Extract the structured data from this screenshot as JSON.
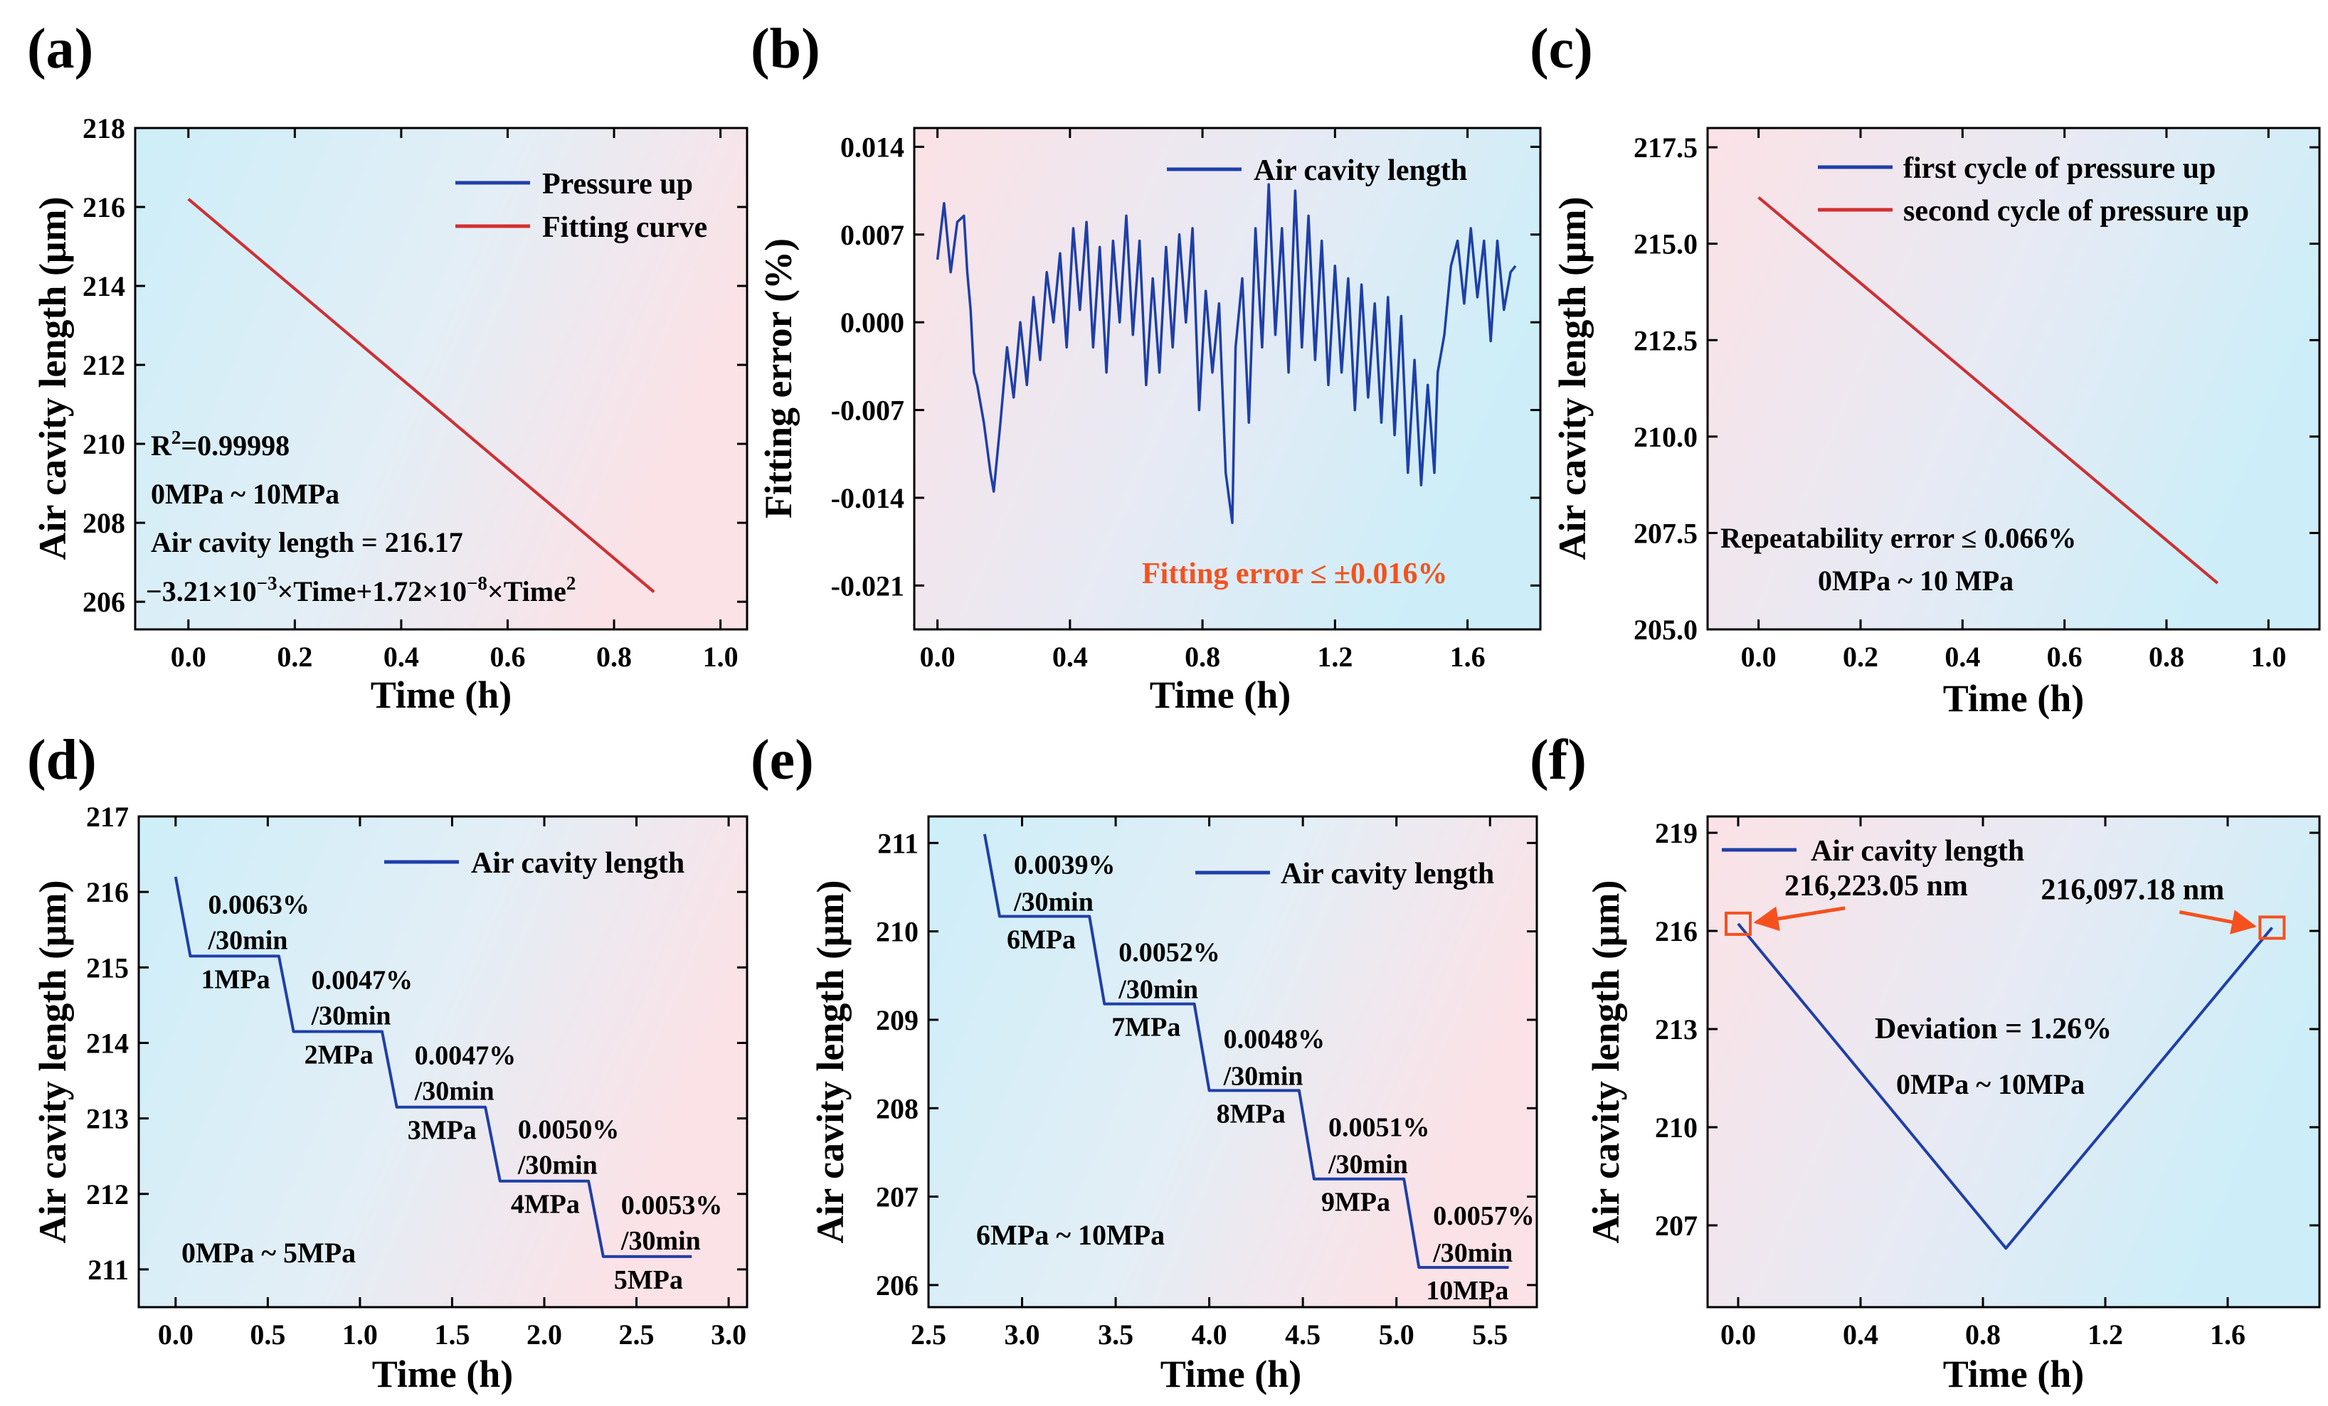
{
  "figure": {
    "panels_order": [
      "a",
      "b",
      "c",
      "d",
      "e",
      "f"
    ]
  },
  "colors": {
    "blue": "#1f3fa8",
    "red": "#d32f2f",
    "orange_annot": "#f4511e",
    "arrow": "#f4511e",
    "bg_cyan": "#d6f1f8",
    "bg_pink": "#fbe3e6"
  },
  "chart_data": [
    {
      "id": "a",
      "label": "(a)",
      "type": "line",
      "xlabel": "Time (h)",
      "ylabel": "Air cavity length (μm)",
      "xlim": [
        -0.1,
        1.05
      ],
      "ylim": [
        205.3,
        218
      ],
      "xticks": [
        0.0,
        0.2,
        0.4,
        0.6,
        0.8,
        1.0
      ],
      "xtick_labels": [
        "0.0",
        "0.2",
        "0.4",
        "0.6",
        "0.8",
        "1.0"
      ],
      "yticks": [
        206,
        208,
        210,
        212,
        214,
        216,
        218
      ],
      "ytick_labels": [
        "206",
        "208",
        "210",
        "212",
        "214",
        "216",
        "218"
      ],
      "gradient": "cyan-left",
      "series": [
        {
          "name": "Pressure up",
          "color": "#1f3fa8",
          "x": [
            0.0,
            0.875
          ],
          "y": [
            216.2,
            206.25
          ]
        },
        {
          "name": "Fitting curve",
          "color": "#d32f2f",
          "x": [
            0.0,
            0.875
          ],
          "y": [
            216.2,
            206.25
          ]
        }
      ],
      "legend_position": "top-right",
      "annotations": [
        {
          "text": "R",
          "sup": "2",
          "after": "=0.99998"
        },
        {
          "text": "0MPa ~ 10MPa"
        },
        {
          "text": "Air cavity length = 216.17"
        },
        {
          "text": "−3.21×10",
          "sup": "−3",
          "after": "×Time+1.72×10",
          "sup2": "−8",
          "after2": "×Time",
          "sup3": "2"
        }
      ]
    },
    {
      "id": "b",
      "label": "(b)",
      "type": "line",
      "xlabel": "Time (h)",
      "ylabel": "Fitting error (%)",
      "xlim": [
        -0.07,
        1.82
      ],
      "ylim": [
        -0.0245,
        0.0155
      ],
      "xticks": [
        0.0,
        0.4,
        0.8,
        1.2,
        1.6
      ],
      "xtick_labels": [
        "0.0",
        "0.4",
        "0.8",
        "1.2",
        "1.6"
      ],
      "yticks": [
        -0.021,
        -0.014,
        -0.007,
        0.0,
        0.007,
        0.014
      ],
      "ytick_labels": [
        "-0.021",
        "-0.014",
        "-0.007",
        "0.000",
        "0.007",
        "0.014"
      ],
      "gradient": "pink-left",
      "series": [
        {
          "name": "Air cavity length",
          "color": "#1f3fa8",
          "x": [
            0.0,
            0.02,
            0.04,
            0.06,
            0.08,
            0.09,
            0.1,
            0.11,
            0.12,
            0.14,
            0.16,
            0.17,
            0.19,
            0.21,
            0.23,
            0.25,
            0.27,
            0.29,
            0.31,
            0.33,
            0.35,
            0.37,
            0.39,
            0.41,
            0.43,
            0.45,
            0.47,
            0.49,
            0.51,
            0.53,
            0.55,
            0.57,
            0.59,
            0.61,
            0.63,
            0.65,
            0.67,
            0.69,
            0.71,
            0.73,
            0.75,
            0.77,
            0.79,
            0.81,
            0.83,
            0.85,
            0.87,
            0.89,
            0.9,
            0.92,
            0.94,
            0.96,
            0.98,
            1.0,
            1.02,
            1.04,
            1.06,
            1.08,
            1.1,
            1.12,
            1.14,
            1.16,
            1.18,
            1.2,
            1.22,
            1.24,
            1.26,
            1.28,
            1.3,
            1.32,
            1.34,
            1.36,
            1.38,
            1.4,
            1.42,
            1.44,
            1.46,
            1.48,
            1.5,
            1.51,
            1.53,
            1.55,
            1.57,
            1.59,
            1.61,
            1.63,
            1.65,
            1.67,
            1.69,
            1.71,
            1.73,
            1.745
          ],
          "y": [
            0.005,
            0.0095,
            0.004,
            0.008,
            0.0085,
            0.004,
            0.001,
            -0.004,
            -0.005,
            -0.008,
            -0.012,
            -0.0135,
            -0.008,
            -0.002,
            -0.006,
            0.0,
            -0.005,
            0.002,
            -0.003,
            0.004,
            0.0,
            0.0055,
            -0.002,
            0.0075,
            0.001,
            0.008,
            -0.002,
            0.006,
            -0.004,
            0.0065,
            0.0,
            0.0085,
            -0.001,
            0.0065,
            -0.005,
            0.0035,
            -0.004,
            0.006,
            -0.002,
            0.007,
            0.0,
            0.0075,
            -0.007,
            0.0025,
            -0.004,
            0.0015,
            -0.012,
            -0.016,
            -0.002,
            0.0035,
            -0.008,
            0.0075,
            -0.002,
            0.011,
            -0.001,
            0.0075,
            -0.004,
            0.0105,
            -0.002,
            0.0085,
            -0.003,
            0.0065,
            -0.005,
            0.0045,
            -0.004,
            0.0035,
            -0.007,
            0.003,
            -0.006,
            0.0015,
            -0.008,
            0.002,
            -0.009,
            0.0005,
            -0.012,
            -0.003,
            -0.013,
            -0.005,
            -0.012,
            -0.004,
            -0.001,
            0.0045,
            0.0065,
            0.0015,
            0.0075,
            0.002,
            0.0065,
            -0.0015,
            0.0065,
            0.001,
            0.004,
            0.0045
          ]
        }
      ],
      "legend_position": "top-right",
      "annotations": [
        {
          "text": "Fitting error ≤ ±0.016%",
          "color": "#f4511e"
        }
      ]
    },
    {
      "id": "c",
      "label": "(c)",
      "type": "line",
      "xlabel": "Time (h)",
      "ylabel": "Air cavity length (μm)",
      "xlim": [
        -0.1,
        1.1
      ],
      "ylim": [
        205.0,
        218.0
      ],
      "xticks": [
        0.0,
        0.2,
        0.4,
        0.6,
        0.8,
        1.0
      ],
      "xtick_labels": [
        "0.0",
        "0.2",
        "0.4",
        "0.6",
        "0.8",
        "1.0"
      ],
      "yticks": [
        205.0,
        207.5,
        210.0,
        212.5,
        215.0,
        217.5
      ],
      "ytick_labels": [
        "205.0",
        "207.5",
        "210.0",
        "212.5",
        "215.0",
        "217.5"
      ],
      "gradient": "pink-left",
      "series": [
        {
          "name": "first cycle of pressure up",
          "color": "#1f3fa8",
          "x": [
            0.0,
            0.9
          ],
          "y": [
            216.2,
            206.2
          ]
        },
        {
          "name": "second cycle of pressure up",
          "color": "#d32f2f",
          "x": [
            0.0,
            0.9
          ],
          "y": [
            216.2,
            206.2
          ]
        }
      ],
      "legend_position": "top-right",
      "annotations": [
        {
          "text": "Repeatability error ≤ 0.066%"
        },
        {
          "text": "0MPa ~ 10 MPa"
        }
      ]
    },
    {
      "id": "d",
      "label": "(d)",
      "type": "line",
      "xlabel": "Time (h)",
      "ylabel": "Air cavity length (μm)",
      "xlim": [
        -0.2,
        3.1
      ],
      "ylim": [
        210.5,
        217.0
      ],
      "xticks": [
        0.0,
        0.5,
        1.0,
        1.5,
        2.0,
        2.5,
        3.0
      ],
      "xtick_labels": [
        "0.0",
        "0.5",
        "1.0",
        "1.5",
        "2.0",
        "2.5",
        "3.0"
      ],
      "yticks": [
        211,
        212,
        213,
        214,
        215,
        216,
        217
      ],
      "ytick_labels": [
        "211",
        "212",
        "213",
        "214",
        "215",
        "216",
        "217"
      ],
      "gradient": "cyan-left",
      "series": [
        {
          "name": "Air cavity length",
          "color": "#1f3fa8",
          "x": [
            0.0,
            0.08,
            0.56,
            0.64,
            1.12,
            1.2,
            1.68,
            1.76,
            2.24,
            2.32,
            2.8
          ],
          "y": [
            216.2,
            215.15,
            215.15,
            214.15,
            214.15,
            213.15,
            213.15,
            212.17,
            212.17,
            211.17,
            211.17
          ]
        }
      ],
      "legend_position": "top-right",
      "step_labels": [
        {
          "rate": "0.0063%",
          "per": "/30min",
          "pressure": "1MPa"
        },
        {
          "rate": "0.0047%",
          "per": "/30min",
          "pressure": "2MPa"
        },
        {
          "rate": "0.0047%",
          "per": "/30min",
          "pressure": "3MPa"
        },
        {
          "rate": "0.0050%",
          "per": "/30min",
          "pressure": "4MPa"
        },
        {
          "rate": "0.0053%",
          "per": "/30min",
          "pressure": "5MPa"
        }
      ],
      "annotations": [
        {
          "text": "0MPa ~ 5MPa"
        }
      ]
    },
    {
      "id": "e",
      "label": "(e)",
      "type": "line",
      "xlabel": "Time (h)",
      "ylabel": "Air cavity length (μm)",
      "xlim": [
        2.5,
        5.75
      ],
      "ylim": [
        205.75,
        211.3
      ],
      "xticks": [
        2.5,
        3.0,
        3.5,
        4.0,
        4.5,
        5.0,
        5.5
      ],
      "xtick_labels": [
        "2.5",
        "3.0",
        "3.5",
        "4.0",
        "4.5",
        "5.0",
        "5.5"
      ],
      "yticks": [
        206,
        207,
        208,
        209,
        210,
        211
      ],
      "ytick_labels": [
        "206",
        "207",
        "208",
        "209",
        "210",
        "211"
      ],
      "gradient": "cyan-left",
      "series": [
        {
          "name": "Air cavity length",
          "color": "#1f3fa8",
          "x": [
            2.8,
            2.88,
            3.36,
            3.44,
            3.92,
            4.0,
            4.48,
            4.56,
            5.04,
            5.12,
            5.6
          ],
          "y": [
            211.1,
            210.17,
            210.17,
            209.18,
            209.18,
            208.2,
            208.2,
            207.2,
            207.2,
            206.2,
            206.2
          ]
        }
      ],
      "legend_position": "top-right",
      "step_labels": [
        {
          "rate": "0.0039%",
          "per": "/30min",
          "pressure": "6MPa"
        },
        {
          "rate": "0.0052%",
          "per": "/30min",
          "pressure": "7MPa"
        },
        {
          "rate": "0.0048%",
          "per": "/30min",
          "pressure": "8MPa"
        },
        {
          "rate": "0.0051%",
          "per": "/30min",
          "pressure": "9MPa"
        },
        {
          "rate": "0.0057%",
          "per": "/30min",
          "pressure": "10MPa"
        }
      ],
      "annotations": [
        {
          "text": "6MPa ~ 10MPa"
        }
      ]
    },
    {
      "id": "f",
      "label": "(f)",
      "type": "line",
      "xlabel": "Time (h)",
      "ylabel": "Air cavity length (μm)",
      "xlim": [
        -0.1,
        1.9
      ],
      "ylim": [
        204.5,
        219.5
      ],
      "xticks": [
        0.0,
        0.4,
        0.8,
        1.2,
        1.6
      ],
      "xtick_labels": [
        "0.0",
        "0.4",
        "0.8",
        "1.2",
        "1.6"
      ],
      "yticks": [
        207,
        210,
        213,
        216,
        219
      ],
      "ytick_labels": [
        "207",
        "210",
        "213",
        "216",
        "219"
      ],
      "gradient": "pink-left",
      "series": [
        {
          "name": "Air cavity length",
          "color": "#1f3fa8",
          "x": [
            0.0,
            0.875,
            1.745
          ],
          "y": [
            216.22,
            206.3,
            216.1
          ]
        }
      ],
      "legend_position": "top-left",
      "markers": [
        {
          "x": 0.0,
          "y": 216.22,
          "label": "216,223.05 nm"
        },
        {
          "x": 1.745,
          "y": 216.1,
          "label": "216,097.18 nm"
        }
      ],
      "annotations": [
        {
          "text": "Deviation = 1.26%"
        },
        {
          "text": "0MPa ~ 10MPa"
        }
      ]
    }
  ]
}
